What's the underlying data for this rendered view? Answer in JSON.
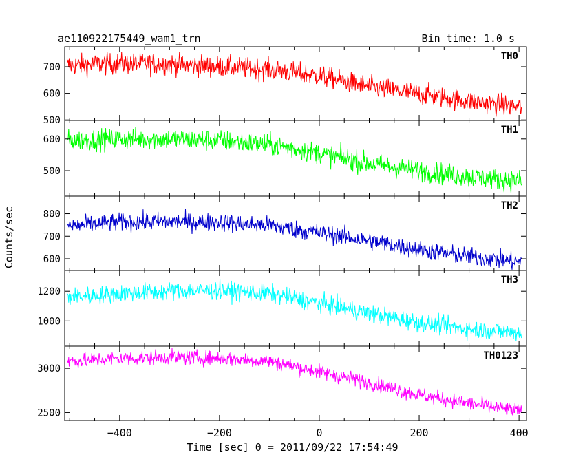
{
  "header": {
    "title": "ae110922175449_wam1_trn",
    "bin_time": "Bin time: 1.0 s"
  },
  "chart_data": {
    "type": "line",
    "title": "ae110922175449_wam1_trn",
    "subtitle": "Bin time: 1.0 s",
    "xlabel": "Time [sec] 0 = 2011/09/22 17:54:49",
    "ylabel": "Counts/sec",
    "xlim": [
      -510,
      415
    ],
    "x_ticks": [
      -400,
      -200,
      0,
      200,
      400
    ],
    "grid": false,
    "panels": [
      {
        "name": "TH0",
        "color": "#ff0000",
        "ylim": [
          498,
          775
        ],
        "y_ticks": [
          500,
          600,
          700
        ],
        "trend": [
          [
            -505,
            705
          ],
          [
            -400,
            712
          ],
          [
            -300,
            710
          ],
          [
            -200,
            700
          ],
          [
            -100,
            690
          ],
          [
            0,
            665
          ],
          [
            100,
            625
          ],
          [
            200,
            598
          ],
          [
            300,
            570
          ],
          [
            405,
            548
          ]
        ],
        "noise": 36
      },
      {
        "name": "TH1",
        "color": "#00ff00",
        "ylim": [
          420,
          658
        ],
        "y_ticks": [
          500,
          600
        ],
        "trend": [
          [
            -505,
            595
          ],
          [
            -400,
            600
          ],
          [
            -300,
            600
          ],
          [
            -200,
            595
          ],
          [
            -100,
            582
          ],
          [
            0,
            555
          ],
          [
            100,
            522
          ],
          [
            200,
            500
          ],
          [
            300,
            480
          ],
          [
            405,
            468
          ]
        ],
        "noise": 30
      },
      {
        "name": "TH2",
        "color": "#0000cc",
        "ylim": [
          548,
          878
        ],
        "y_ticks": [
          600,
          700,
          800
        ],
        "trend": [
          [
            -505,
            745
          ],
          [
            -400,
            762
          ],
          [
            -300,
            765
          ],
          [
            -200,
            762
          ],
          [
            -100,
            748
          ],
          [
            0,
            715
          ],
          [
            100,
            680
          ],
          [
            200,
            640
          ],
          [
            300,
            610
          ],
          [
            405,
            585
          ]
        ],
        "noise": 36
      },
      {
        "name": "TH3",
        "color": "#00ffff",
        "ylim": [
          830,
          1340
        ],
        "y_ticks": [
          1000,
          1200
        ],
        "trend": [
          [
            -505,
            1160
          ],
          [
            -400,
            1185
          ],
          [
            -300,
            1200
          ],
          [
            -200,
            1205
          ],
          [
            -100,
            1185
          ],
          [
            0,
            1120
          ],
          [
            100,
            1050
          ],
          [
            200,
            990
          ],
          [
            300,
            945
          ],
          [
            405,
            920
          ]
        ],
        "noise": 55
      },
      {
        "name": "TH0123",
        "color": "#ff00ff",
        "ylim": [
          2410,
          3250
        ],
        "y_ticks": [
          2500,
          3000
        ],
        "trend": [
          [
            -505,
            3080
          ],
          [
            -400,
            3110
          ],
          [
            -300,
            3125
          ],
          [
            -200,
            3115
          ],
          [
            -100,
            3080
          ],
          [
            0,
            2960
          ],
          [
            100,
            2840
          ],
          [
            200,
            2700
          ],
          [
            300,
            2600
          ],
          [
            405,
            2515
          ]
        ],
        "noise": 75
      }
    ]
  }
}
